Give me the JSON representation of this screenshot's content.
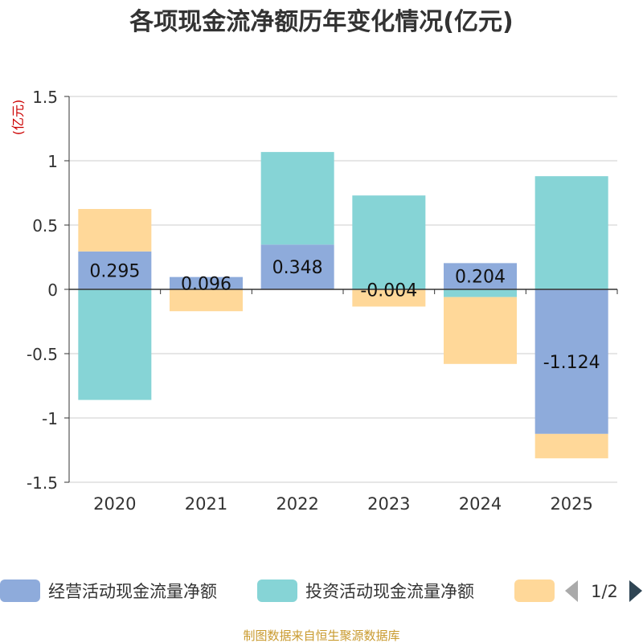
{
  "chart_data": {
    "type": "bar",
    "title": "各项现金流净额历年变化情况(亿元)",
    "ylabel": "(亿元)",
    "xlabel": "",
    "ylim": [
      -1.5,
      1.5
    ],
    "yticks": [
      1.5,
      1,
      0.5,
      0,
      -0.5,
      -1,
      -1.5
    ],
    "ytick_labels": [
      "1.5",
      "1",
      "0.5",
      "0",
      "-0.5",
      "-1",
      "-1.5"
    ],
    "categories": [
      "2020",
      "2021",
      "2022",
      "2023",
      "2024",
      "2025"
    ],
    "stacked": true,
    "grid": true,
    "legend_position": "bottom",
    "series": [
      {
        "name": "经营活动现金流量净额",
        "color": "#8eabdb",
        "values": [
          0.295,
          0.096,
          0.348,
          -0.004,
          0.204,
          -1.124
        ],
        "data_labels": [
          "0.295",
          "0.096",
          "0.348",
          "-0.004",
          "0.204",
          "-1.124"
        ]
      },
      {
        "name": "投资活动现金流量净额",
        "color": "#86d4d6",
        "values": [
          -0.86,
          0.0,
          0.72,
          0.73,
          -0.06,
          0.88
        ]
      },
      {
        "name": "",
        "color": "#ffd899",
        "values": [
          0.33,
          -0.17,
          0.0,
          -0.13,
          -0.52,
          -0.19
        ]
      }
    ],
    "legend_page": "1/2",
    "source": "制图数据来自恒生聚源数据库"
  },
  "colors": {
    "title": "#333333",
    "axis_text": "#333333",
    "ylabel": "#cc0000",
    "grid": "#cccccc",
    "source": "#c99a2e",
    "pager_active": "#2f4554",
    "pager_inactive": "#aaaaaa"
  }
}
